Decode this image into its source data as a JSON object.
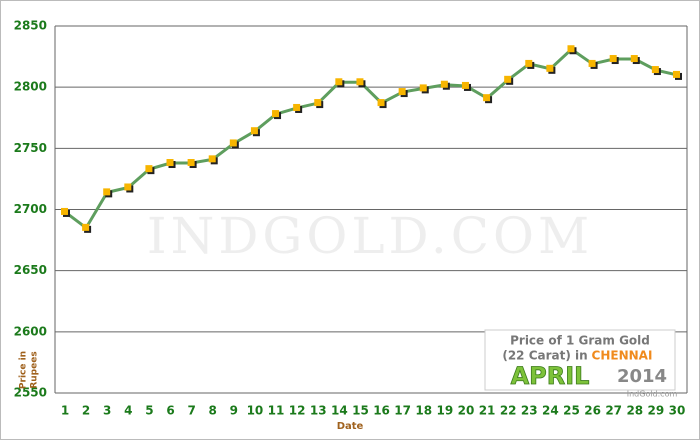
{
  "chart_data": {
    "type": "line",
    "x_label": "Date",
    "y_label": [
      "Price in",
      "Rupees"
    ],
    "watermark": "INDGOLD.COM",
    "legend_box": {
      "line1": "Price of 1 Gram Gold",
      "line2": "(22 Carat) in",
      "city": "CHENNAI",
      "month": "APRIL",
      "year": "2014",
      "site": "IndGold.com"
    },
    "categories": [
      "1",
      "2",
      "3",
      "4",
      "5",
      "6",
      "7",
      "8",
      "9",
      "10",
      "11",
      "12",
      "13",
      "14",
      "15",
      "16",
      "17",
      "18",
      "19",
      "20",
      "21",
      "22",
      "23",
      "24",
      "25",
      "26",
      "27",
      "28",
      "29",
      "30"
    ],
    "series": [
      {
        "color": "#5e9e5e",
        "marker_color": "#f7b500",
        "values": [
          2698,
          2685,
          2714,
          2718,
          2733,
          2738,
          2738,
          2741,
          2754,
          2764,
          2778,
          2783,
          2787,
          2804,
          2804,
          2787,
          2796,
          2799,
          2802,
          2801,
          2791,
          2806,
          2819,
          2815,
          2831,
          2819,
          2823,
          2823,
          2814,
          2810
        ]
      }
    ],
    "ylim": [
      2550,
      2850
    ],
    "yticks": [
      2550,
      2600,
      2650,
      2700,
      2750,
      2800,
      2850
    ],
    "grid": true
  }
}
